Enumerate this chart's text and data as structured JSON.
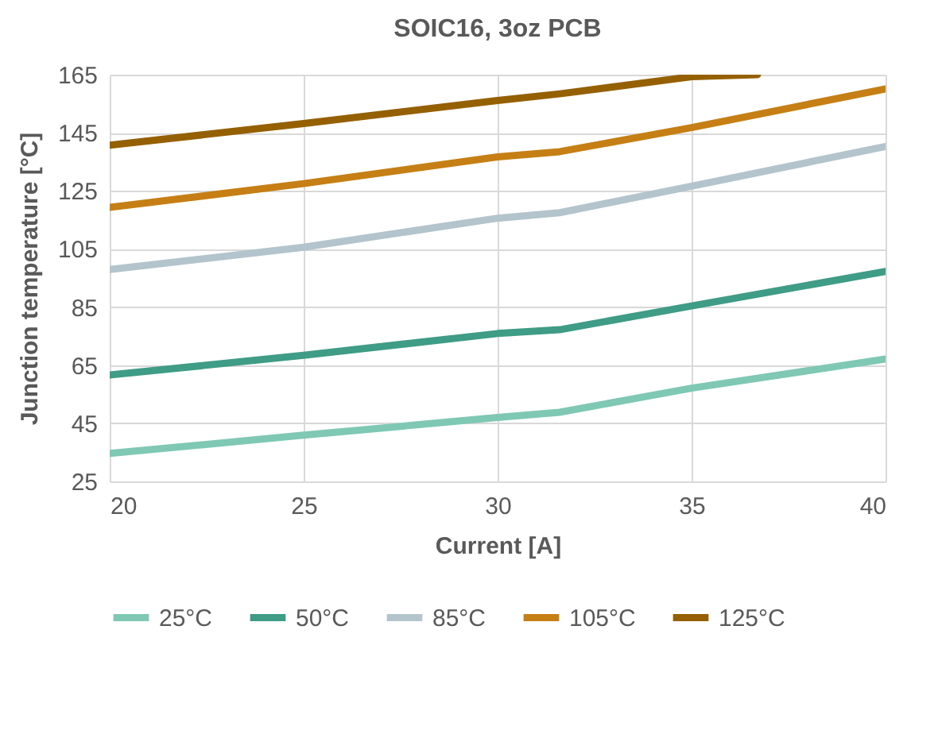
{
  "chart_data": {
    "type": "line",
    "title": "SOIC16, 3oz PCB",
    "xlabel": "Current [A]",
    "ylabel": "Junction temperature [°C]",
    "x": [
      20,
      25,
      30,
      31.6,
      35,
      40
    ],
    "series": [
      {
        "name": "25°C",
        "color": "#7fc8b4",
        "values": [
          34.6,
          40.9,
          47,
          48.8,
          57.1,
          67.1
        ]
      },
      {
        "name": "50°C",
        "color": "#3f9c86",
        "values": [
          61.6,
          68.4,
          75.9,
          77.2,
          85.4,
          97.3
        ]
      },
      {
        "name": "85°C",
        "color": "#b3c4cc",
        "values": [
          97.9,
          105.6,
          115.6,
          117.5,
          126.6,
          140.3
        ]
      },
      {
        "name": "105°C",
        "color": "#c67f14",
        "values": [
          119.3,
          127.5,
          136.7,
          138.5,
          146.8,
          160.1
        ]
      },
      {
        "name": "125°C",
        "color": "#956000",
        "x": [
          20,
          25,
          30,
          31.6,
          35,
          36.7
        ],
        "values": [
          140.7,
          148.2,
          156.1,
          158.4,
          164.3,
          165
        ]
      }
    ],
    "xlim": [
      20,
      40
    ],
    "xticks": [
      20,
      25,
      30,
      35,
      40
    ],
    "ylim": [
      25,
      165
    ],
    "yticks": [
      25,
      45,
      65,
      85,
      105,
      125,
      145,
      165
    ],
    "grid": true,
    "legend": "bottom"
  }
}
